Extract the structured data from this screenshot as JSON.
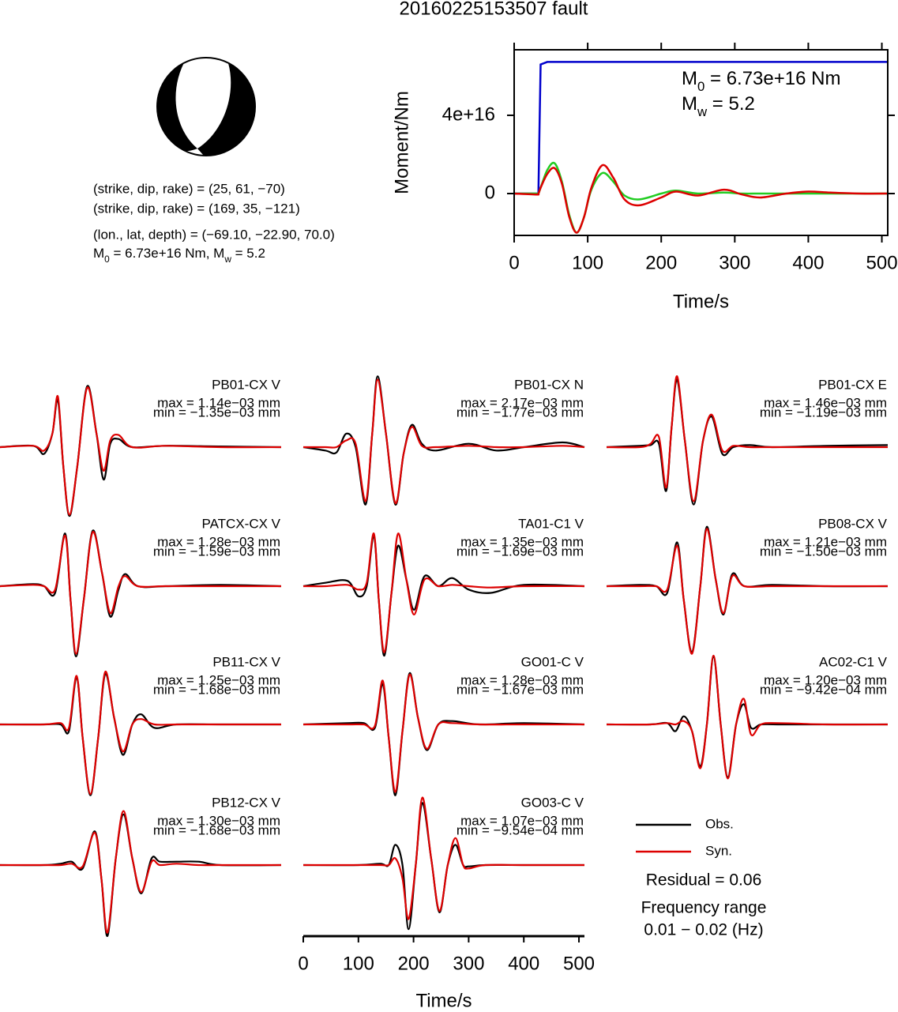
{
  "title": "20160225153507 fault",
  "mechanism": {
    "lines": [
      "(strike, dip, rake) = (25, 61, −70)",
      "(strike, dip, rake) = (169, 35, −121)",
      "(lon., lat, depth) = (−69.10, −22.90, 70.0)"
    ],
    "moment_line": [
      {
        "text": "M"
      },
      {
        "text": "0",
        "sub": true
      },
      {
        "text": " = 6.73e+16 Nm, M"
      },
      {
        "text": "w",
        "sub": true
      },
      {
        "text": " = 5.2"
      }
    ]
  },
  "chart_data": [
    {
      "type": "line",
      "xlabel": "Time/s",
      "ylabel": "Moment/Nm",
      "xlim": [
        0,
        508
      ],
      "ylim": [
        -2.14e+16,
        7.35e+16
      ],
      "xticks": [
        0,
        100,
        200,
        300,
        400,
        500
      ],
      "yticks": [
        0,
        {
          "value": 4e+16,
          "label": "4e+16"
        }
      ],
      "x": [
        0,
        30,
        33,
        36,
        45,
        55,
        65,
        75,
        85,
        95,
        105,
        120,
        135,
        150,
        170,
        200,
        220,
        250,
        285,
        310,
        335,
        370,
        400,
        430,
        470,
        508
      ],
      "series": [
        {
          "color": "#0000cc",
          "smooth": false,
          "values": [
            0,
            0,
            0,
            6.6e+16,
            6.73e+16,
            6.73e+16,
            6.73e+16,
            6.73e+16,
            6.73e+16,
            6.73e+16,
            6.73e+16,
            6.73e+16,
            6.73e+16,
            6.73e+16,
            6.73e+16,
            6.73e+16,
            6.73e+16,
            6.73e+16,
            6.73e+16,
            6.73e+16,
            6.73e+16,
            6.73e+16,
            6.73e+16,
            6.73e+16,
            6.73e+16,
            6.73e+16
          ]
        },
        {
          "color": "#22cc22",
          "smooth": true,
          "values": [
            0,
            0,
            0,
            3000000000000000.0,
            1.2e+16,
            1.55e+16,
            6000000000000000.0,
            -1.1e+16,
            -2e+16,
            -1.2e+16,
            2000000000000000.0,
            1.05e+16,
            6000000000000000.0,
            -1000000000000000.0,
            -3000000000000000.0,
            0,
            1500000000000000.0,
            0,
            500000000000000.0,
            0,
            0,
            0,
            0,
            0,
            0,
            0
          ]
        },
        {
          "color": "#dd0000",
          "smooth": true,
          "values": [
            0,
            -500000000000000.0,
            0,
            3000000000000000.0,
            1e+16,
            1.3e+16,
            5000000000000000.0,
            -1.2e+16,
            -2e+16,
            -1.2e+16,
            3000000000000000.0,
            1.45e+16,
            8000000000000000.0,
            -3000000000000000.0,
            -6000000000000000.0,
            -2000000000000000.0,
            1000000000000000.0,
            -1000000000000000.0,
            2000000000000000.0,
            -500000000000000.0,
            -2000000000000000.0,
            0,
            1000000000000000.0,
            500000000000000.0,
            0,
            0
          ]
        }
      ],
      "annotations": [
        [
          {
            "text": "M"
          },
          {
            "text": "0",
            "sub": true
          },
          {
            "text": " = 6.73e+16 Nm"
          }
        ],
        [
          {
            "text": "M"
          },
          {
            "text": "w",
            "sub": true
          },
          {
            "text": " = 5.2"
          }
        ]
      ]
    },
    {
      "type": "waveform",
      "xlabel": "Time/s",
      "xlim": [
        0,
        510
      ],
      "ylim": [
        -1.1,
        1.1
      ],
      "xticks": [
        0,
        100,
        200,
        300,
        400,
        500
      ],
      "series": [
        {
          "name": "Obs.",
          "color": "#000000"
        },
        {
          "name": "Syn.",
          "color": "#dd0000"
        }
      ],
      "annotations": [
        "Residual = 0.06",
        "Frequency range",
        "0.01 − 0.02 (Hz)"
      ],
      "panels": [
        {
          "station": "PB01-CX V",
          "max": "max = 1.14e−03 mm",
          "min": "min = −1.35e−03 mm",
          "x": [
            0,
            60,
            80,
            95,
            105,
            115,
            126,
            140,
            158,
            175,
            188,
            200,
            215,
            240,
            300,
            400,
            510
          ],
          "series": [
            {
              "values": [
                0,
                0.02,
                -0.1,
                0.2,
                0.7,
                -0.3,
                -1.02,
                -0.3,
                0.9,
                0.2,
                -0.48,
                0.05,
                0.12,
                0,
                0.02,
                0.01,
                0
              ]
            },
            {
              "values": [
                0,
                0.02,
                -0.05,
                0.2,
                0.75,
                -0.3,
                -1.0,
                -0.3,
                0.88,
                0.2,
                -0.35,
                0.1,
                0.18,
                0,
                0.02,
                0,
                0
              ]
            }
          ]
        },
        {
          "station": "PB01-CX N",
          "max": "max = 2.17e−03 mm",
          "min": "min = −1.77e−03 mm",
          "x": [
            0,
            40,
            60,
            78,
            95,
            113,
            125,
            135,
            150,
            167,
            182,
            197,
            215,
            240,
            300,
            350,
            400,
            470,
            510
          ],
          "series": [
            {
              "values": [
                0,
                -0.05,
                -0.08,
                0.2,
                0,
                -0.85,
                0.2,
                1.05,
                0.2,
                -0.85,
                -0.1,
                0.33,
                0.05,
                -0.05,
                0.05,
                -0.05,
                0,
                0.07,
                0
              ]
            },
            {
              "values": [
                0,
                0,
                0,
                0.1,
                0.05,
                -0.8,
                0.2,
                1.0,
                0.2,
                -0.83,
                -0.1,
                0.3,
                0.02,
                0,
                0.02,
                0,
                0,
                0.02,
                0
              ]
            }
          ]
        },
        {
          "station": "PB01-CX E",
          "max": "max = 1.46e−03 mm",
          "min": "min = −1.19e−03 mm",
          "x": [
            0,
            60,
            80,
            95,
            108,
            118,
            128,
            142,
            158,
            175,
            191,
            210,
            230,
            260,
            300,
            400,
            510
          ],
          "series": [
            {
              "values": [
                0,
                0.02,
                0.03,
                0.05,
                -0.65,
                0.3,
                1.0,
                0.1,
                -0.85,
                0.1,
                0.45,
                -0.1,
                0,
                0.03,
                0,
                0.02,
                0.03
              ]
            },
            {
              "values": [
                0,
                0,
                0.05,
                0.15,
                -0.6,
                0.3,
                1.05,
                0.1,
                -0.8,
                0.1,
                0.48,
                -0.05,
                0.02,
                0,
                0,
                0,
                0
              ]
            }
          ]
        },
        {
          "station": "PATCX-CX V",
          "max": "max = 1.28e−03 mm",
          "min": "min = −1.59e−03 mm",
          "x": [
            0,
            60,
            80,
            100,
            118,
            128,
            138,
            152,
            168,
            185,
            200,
            215,
            227,
            250,
            300,
            400,
            510
          ],
          "series": [
            {
              "values": [
                0,
                0.03,
                0,
                -0.1,
                0.78,
                -0.2,
                -1.04,
                -0.2,
                0.82,
                0.2,
                -0.45,
                -0.05,
                0.18,
                0,
                0,
                0.02,
                0
              ]
            },
            {
              "values": [
                0,
                0.02,
                0,
                -0.05,
                0.75,
                -0.2,
                -1.0,
                -0.2,
                0.8,
                0.2,
                -0.4,
                0,
                0.15,
                0,
                0,
                0,
                0
              ]
            }
          ]
        },
        {
          "station": "TA01-C1 V",
          "max": "max = 1.35e−03 mm",
          "min": "min = −1.69e−03 mm",
          "x": [
            0,
            40,
            80,
            100,
            115,
            128,
            137,
            147,
            160,
            172,
            187,
            201,
            220,
            245,
            270,
            300,
            340,
            400,
            510
          ],
          "series": [
            {
              "values": [
                0,
                0.05,
                0.08,
                -0.15,
                0,
                0.75,
                -0.2,
                -1.03,
                -0.1,
                0.6,
                0.1,
                -0.35,
                0.15,
                0,
                0.12,
                -0.05,
                -0.1,
                0.02,
                0
              ]
            },
            {
              "values": [
                0,
                0,
                0.02,
                -0.05,
                0.05,
                0.78,
                -0.2,
                -0.98,
                -0.1,
                0.78,
                0.1,
                -0.42,
                0.1,
                0,
                0.02,
                0,
                -0.02,
                0,
                0
              ]
            }
          ]
        },
        {
          "station": "PB08-CX V",
          "max": "max = 1.21e−03 mm",
          "min": "min = −1.50e−03 mm",
          "x": [
            0,
            60,
            90,
            110,
            128,
            140,
            155,
            170,
            182,
            198,
            212,
            228,
            250,
            300,
            400,
            510
          ],
          "series": [
            {
              "values": [
                0,
                0.02,
                0,
                -0.1,
                0.65,
                -0.2,
                -0.98,
                0,
                0.88,
                0.1,
                -0.42,
                0.18,
                0,
                0.02,
                0,
                0
              ]
            },
            {
              "values": [
                0,
                0,
                0,
                -0.05,
                0.6,
                -0.2,
                -1.0,
                0,
                0.85,
                0.1,
                -0.4,
                0.15,
                0,
                0,
                0,
                0
              ]
            }
          ]
        },
        {
          "station": "PB11-CX V",
          "max": "max = 1.25e−03 mm",
          "min": "min = −1.68e−03 mm",
          "x": [
            0,
            80,
            110,
            125,
            139,
            150,
            164,
            178,
            191,
            207,
            223,
            240,
            256,
            280,
            320,
            400,
            510
          ],
          "series": [
            {
              "values": [
                0,
                0,
                0,
                -0.1,
                0.7,
                -0.2,
                -1.05,
                -0.2,
                0.75,
                0.1,
                -0.45,
                0,
                0.15,
                -0.05,
                0,
                0,
                0
              ]
            },
            {
              "values": [
                0,
                0,
                0.02,
                -0.05,
                0.72,
                -0.2,
                -1.03,
                -0.2,
                0.78,
                0.1,
                -0.4,
                0,
                0.08,
                0,
                0,
                0,
                0
              ]
            }
          ]
        },
        {
          "station": "GO01-C V",
          "max": "max = 1.28e−03 mm",
          "min": "min = −1.67e−03 mm",
          "x": [
            0,
            80,
            110,
            130,
            144,
            155,
            167,
            180,
            193,
            208,
            224,
            245,
            270,
            320,
            400,
            510
          ],
          "series": [
            {
              "values": [
                0,
                0.02,
                0.02,
                -0.05,
                0.6,
                -0.2,
                -1.05,
                -0.1,
                0.76,
                0.1,
                -0.38,
                0,
                0.05,
                0,
                0.02,
                0
              ]
            },
            {
              "values": [
                0,
                0,
                0,
                -0.02,
                0.65,
                -0.2,
                -1.0,
                -0.1,
                0.74,
                0.1,
                -0.36,
                0,
                0.02,
                0,
                0,
                0
              ]
            }
          ]
        },
        {
          "station": "AC02-C1 V",
          "max": "max = 1.20e−03 mm",
          "min": "min = −9.42e−04 mm",
          "x": [
            0,
            80,
            110,
            125,
            140,
            155,
            170,
            182,
            194,
            207,
            220,
            235,
            249,
            262,
            280,
            310,
            400,
            510
          ],
          "series": [
            {
              "values": [
                0,
                0,
                0.02,
                -0.1,
                0.12,
                -0.1,
                -0.62,
                0,
                1.0,
                0,
                -0.78,
                0,
                0.3,
                -0.05,
                0,
                0,
                0,
                0
              ]
            },
            {
              "values": [
                0,
                0,
                0.02,
                0,
                0.05,
                -0.1,
                -0.65,
                0,
                1.02,
                0,
                -0.8,
                0,
                0.38,
                -0.15,
                0,
                0.02,
                0,
                0
              ]
            }
          ]
        },
        {
          "station": "PB12-CX V",
          "max": "max = 1.30e−03 mm",
          "min": "min = −1.68e−03 mm",
          "x": [
            0,
            80,
            110,
            130,
            150,
            172,
            184,
            195,
            210,
            224,
            240,
            256,
            275,
            290,
            320,
            360,
            400,
            510
          ],
          "series": [
            {
              "values": [
                0,
                0,
                0.02,
                0.05,
                -0.05,
                0.5,
                -0.2,
                -1.05,
                0.1,
                0.75,
                0.1,
                -0.42,
                0.1,
                0.05,
                0.05,
                0.05,
                0,
                0
              ]
            },
            {
              "values": [
                0,
                0,
                0,
                0.02,
                -0.02,
                0.48,
                -0.2,
                -1.0,
                0.1,
                0.8,
                0.1,
                -0.4,
                0.05,
                0,
                0.02,
                0,
                0,
                0
              ]
            }
          ]
        },
        {
          "station": "GO03-C V",
          "max": "max = 1.07e−03 mm",
          "min": "min = −9.54e−04 mm",
          "x": [
            0,
            100,
            140,
            155,
            167,
            180,
            191,
            204,
            216,
            232,
            247,
            262,
            276,
            290,
            300,
            330,
            400,
            510
          ],
          "series": [
            {
              "values": [
                0,
                0,
                0.02,
                0,
                0.3,
                0,
                -0.95,
                0,
                0.92,
                0.1,
                -0.7,
                0,
                0.3,
                0,
                -0.02,
                0,
                0,
                0
              ]
            },
            {
              "values": [
                0,
                0,
                0,
                0,
                0.1,
                -0.2,
                -0.8,
                0,
                1.0,
                0.1,
                -0.68,
                0,
                0.4,
                0,
                -0.05,
                0,
                0,
                0
              ]
            }
          ]
        }
      ]
    }
  ]
}
